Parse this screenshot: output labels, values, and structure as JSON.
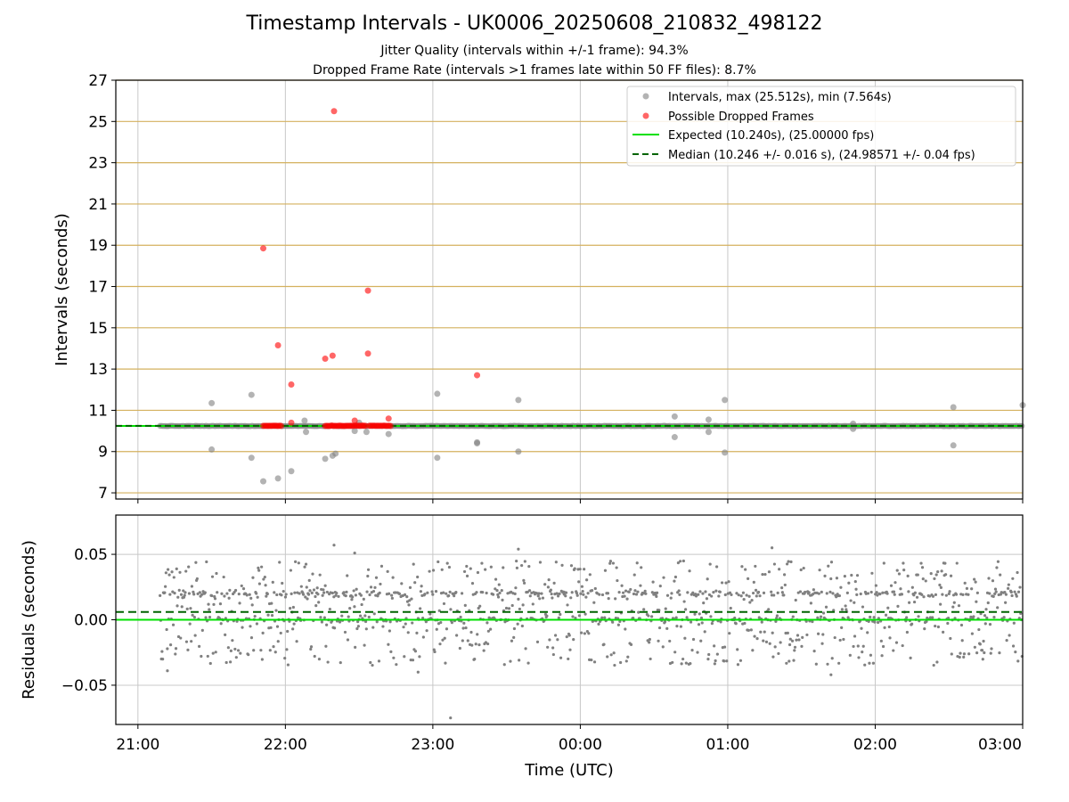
{
  "figure": {
    "title": "Timestamp Intervals - UK0006_20250608_210832_498122",
    "subtitle_1": "Jitter Quality (intervals within +/-1 frame): 94.3%",
    "subtitle_2": "Dropped Frame Rate (intervals >1 frames late within 50 FF files): 8.7%"
  },
  "colors": {
    "intervals": "#808080",
    "dropped": "#ff0000",
    "expected": "#00e000",
    "median": "#006400",
    "hgrid": "#d4b15e",
    "vgrid": "#c8c8c8"
  },
  "chart_data": [
    {
      "type": "scatter",
      "panel": "intervals",
      "xlabel": "",
      "ylabel": "Intervals (seconds)",
      "x_tick_labels": [
        "21:00",
        "22:00",
        "23:00",
        "00:00",
        "01:00",
        "02:00",
        "03:00"
      ],
      "x_ticks_hours": [
        21,
        22,
        23,
        24,
        25,
        26,
        27
      ],
      "xlim_hours": [
        20.85,
        27.0
      ],
      "ylim": [
        6.7,
        27.0
      ],
      "y_ticks": [
        7,
        9,
        11,
        13,
        15,
        17,
        19,
        21,
        23,
        25,
        27
      ],
      "grid": "on",
      "legend_position": "top-right",
      "legend": [
        "Intervals, max (25.512s), min (7.564s)",
        "Possible Dropped Frames",
        "Expected (10.240s), (25.00000 fps)",
        "Median (10.246 +/- 0.016 s), (24.98571 +/- 0.04 fps)"
      ],
      "expected_interval": 10.24,
      "median_interval": 10.246,
      "baseline_x_range_hours": [
        21.15,
        27.0
      ],
      "dropped_cluster_x_ranges_hours": [
        [
          21.85,
          21.98
        ],
        [
          22.27,
          22.55
        ],
        [
          22.57,
          22.72
        ]
      ],
      "intervals_outliers": [
        {
          "x": 21.5,
          "y": 11.35
        },
        {
          "x": 21.5,
          "y": 9.1
        },
        {
          "x": 21.77,
          "y": 11.75
        },
        {
          "x": 21.77,
          "y": 8.7
        },
        {
          "x": 21.85,
          "y": 7.56
        },
        {
          "x": 21.95,
          "y": 7.7
        },
        {
          "x": 22.04,
          "y": 8.05
        },
        {
          "x": 22.13,
          "y": 10.5
        },
        {
          "x": 22.14,
          "y": 9.95
        },
        {
          "x": 22.27,
          "y": 8.65
        },
        {
          "x": 22.32,
          "y": 8.8
        },
        {
          "x": 22.34,
          "y": 8.9
        },
        {
          "x": 22.47,
          "y": 10.0
        },
        {
          "x": 22.5,
          "y": 10.4
        },
        {
          "x": 22.55,
          "y": 9.95
        },
        {
          "x": 22.7,
          "y": 9.85
        },
        {
          "x": 23.03,
          "y": 11.8
        },
        {
          "x": 23.03,
          "y": 8.7
        },
        {
          "x": 23.3,
          "y": 9.45
        },
        {
          "x": 23.3,
          "y": 9.4
        },
        {
          "x": 23.58,
          "y": 11.5
        },
        {
          "x": 23.58,
          "y": 9.0
        },
        {
          "x": 24.64,
          "y": 10.7
        },
        {
          "x": 24.64,
          "y": 9.7
        },
        {
          "x": 24.87,
          "y": 10.55
        },
        {
          "x": 24.87,
          "y": 9.95
        },
        {
          "x": 24.98,
          "y": 11.5
        },
        {
          "x": 24.98,
          "y": 8.95
        },
        {
          "x": 25.85,
          "y": 10.35
        },
        {
          "x": 25.85,
          "y": 10.1
        },
        {
          "x": 26.53,
          "y": 11.15
        },
        {
          "x": 26.53,
          "y": 9.3
        },
        {
          "x": 27.0,
          "y": 11.25
        }
      ],
      "dropped_frames": [
        {
          "x": 21.85,
          "y": 18.85
        },
        {
          "x": 21.95,
          "y": 14.15
        },
        {
          "x": 22.04,
          "y": 12.25
        },
        {
          "x": 22.04,
          "y": 10.4
        },
        {
          "x": 22.27,
          "y": 13.5
        },
        {
          "x": 22.32,
          "y": 13.65
        },
        {
          "x": 22.33,
          "y": 25.5
        },
        {
          "x": 22.47,
          "y": 10.5
        },
        {
          "x": 22.56,
          "y": 16.8
        },
        {
          "x": 22.56,
          "y": 13.75
        },
        {
          "x": 22.7,
          "y": 10.6
        },
        {
          "x": 23.3,
          "y": 12.7
        }
      ]
    },
    {
      "type": "scatter",
      "panel": "residuals",
      "xlabel": "Time (UTC)",
      "ylabel": "Residuals (seconds)",
      "x_tick_labels": [
        "21:00",
        "22:00",
        "23:00",
        "00:00",
        "01:00",
        "02:00",
        "03:00"
      ],
      "x_ticks_hours": [
        21,
        22,
        23,
        24,
        25,
        26,
        27
      ],
      "xlim_hours": [
        20.85,
        27.0
      ],
      "ylim": [
        -0.08,
        0.08
      ],
      "y_ticks": [
        0.05,
        0.0,
        -0.05
      ],
      "y_tick_labels": [
        "0.05",
        "0.00",
        "−0.05"
      ],
      "grid": "on",
      "expected_residual": 0.0,
      "median_residual": 0.006,
      "residual_spread_range": [
        -0.035,
        0.045
      ],
      "residual_extremes": [
        {
          "x": 22.33,
          "y": 0.057
        },
        {
          "x": 22.47,
          "y": 0.051
        },
        {
          "x": 23.58,
          "y": 0.054
        },
        {
          "x": 25.3,
          "y": 0.055
        },
        {
          "x": 23.12,
          "y": -0.075
        },
        {
          "x": 22.9,
          "y": -0.04
        },
        {
          "x": 21.2,
          "y": -0.039
        },
        {
          "x": 25.7,
          "y": -0.042
        }
      ]
    }
  ]
}
